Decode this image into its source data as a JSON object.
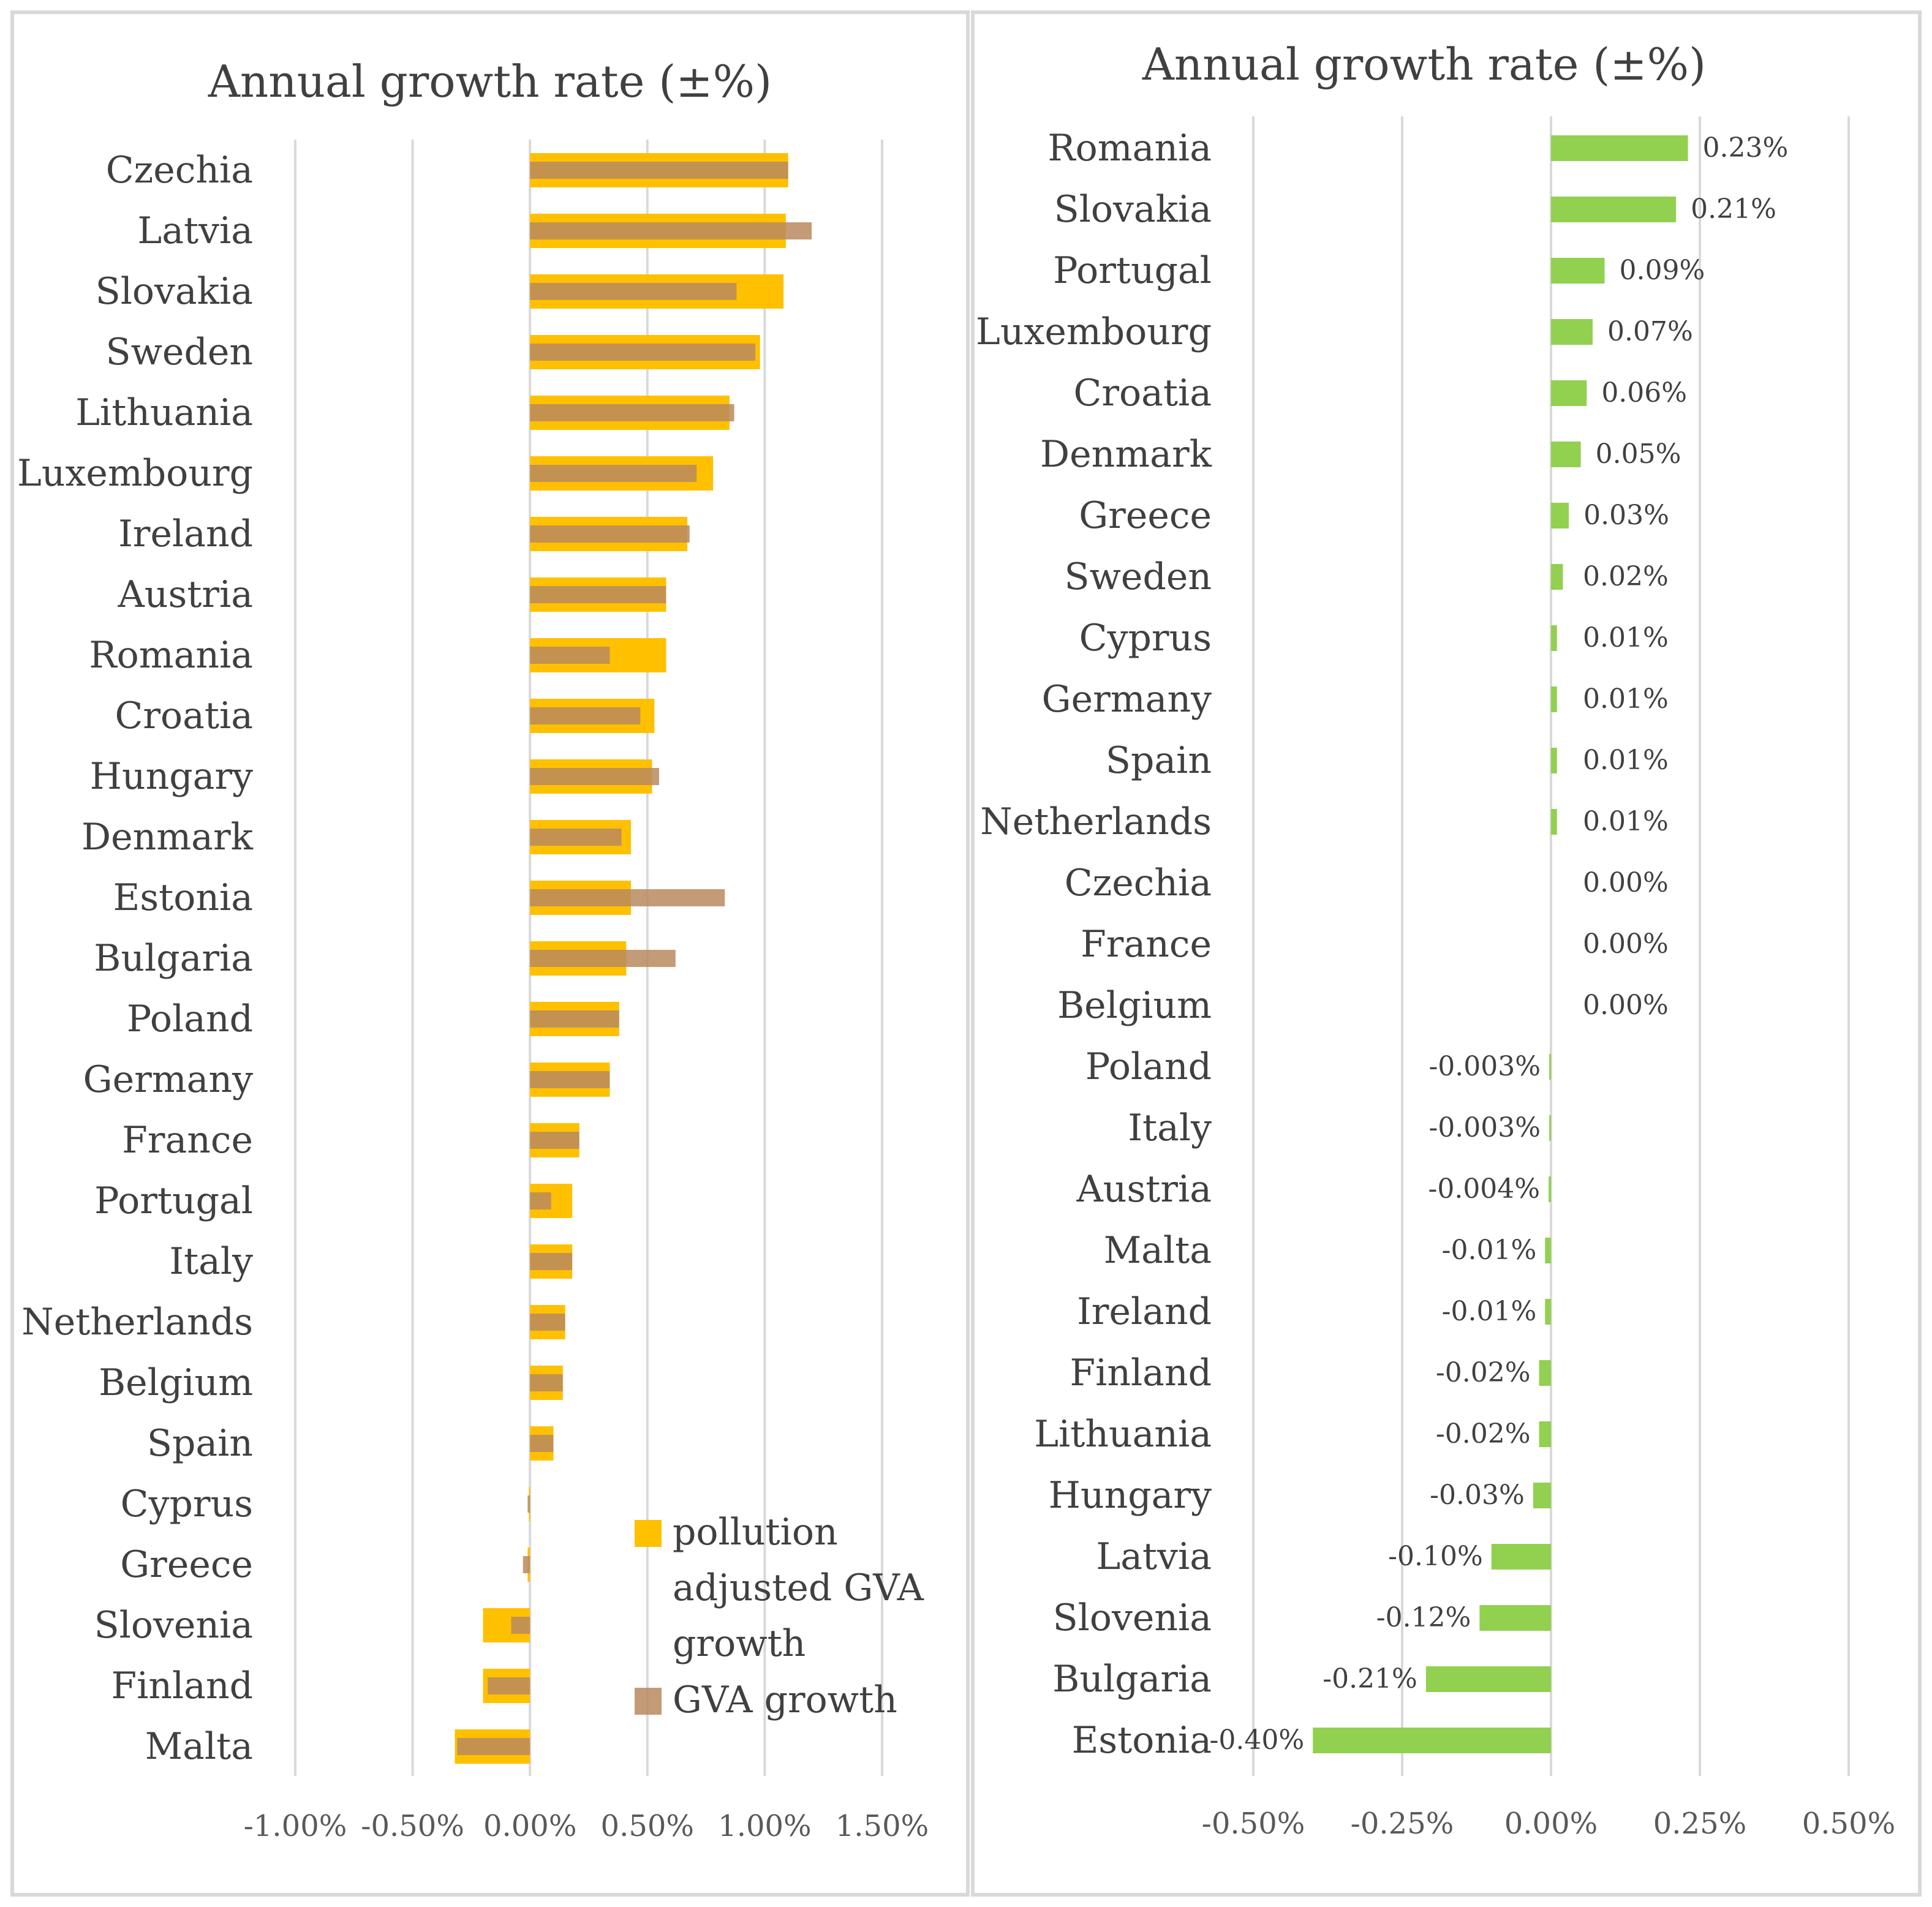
{
  "colors": {
    "pollution_adjusted": "#FFC000",
    "gva": "#B8895E",
    "difference": "#92D050",
    "grid": "#D9D9D9",
    "frame": "#D9D9D9"
  },
  "chart_data": [
    {
      "type": "bar",
      "orientation": "horizontal",
      "title": "Annual growth rate (±%)",
      "categories": [
        "Czechia",
        "Latvia",
        "Slovakia",
        "Sweden",
        "Lithuania",
        "Luxembourg",
        "Ireland",
        "Austria",
        "Romania",
        "Croatia",
        "Hungary",
        "Denmark",
        "Estonia",
        "Bulgaria",
        "Poland",
        "Germany",
        "France",
        "Portugal",
        "Italy",
        "Netherlands",
        "Belgium",
        "Spain",
        "Cyprus",
        "Greece",
        "Slovenia",
        "Finland",
        "Malta"
      ],
      "series": [
        {
          "name": "pollution adjusted GVA growth",
          "values": [
            1.1,
            1.09,
            1.08,
            0.98,
            0.85,
            0.78,
            0.67,
            0.58,
            0.58,
            0.53,
            0.52,
            0.43,
            0.43,
            0.41,
            0.38,
            0.34,
            0.21,
            0.18,
            0.18,
            0.15,
            0.14,
            0.1,
            -0.005,
            -0.01,
            -0.2,
            -0.2,
            -0.32
          ]
        },
        {
          "name": "GVA growth",
          "values": [
            1.1,
            1.2,
            0.88,
            0.96,
            0.87,
            0.71,
            0.68,
            0.58,
            0.34,
            0.47,
            0.55,
            0.39,
            0.83,
            0.62,
            0.38,
            0.34,
            0.21,
            0.09,
            0.18,
            0.15,
            0.14,
            0.1,
            -0.01,
            -0.03,
            -0.08,
            -0.18,
            -0.31
          ]
        }
      ],
      "xlim": [
        -1.0,
        1.5
      ],
      "x_ticks": [
        "-1.00%",
        "-0.50%",
        "0.00%",
        "0.50%",
        "1.00%",
        "1.50%"
      ],
      "x_tick_values": [
        -1.0,
        -0.5,
        0.0,
        0.5,
        1.0,
        1.5
      ],
      "grid": true,
      "legend_position": "bottom-right",
      "legend": [
        {
          "lines": [
            "pollution",
            "adjusted GVA",
            "growth"
          ]
        },
        {
          "lines": [
            "GVA growth"
          ]
        }
      ]
    },
    {
      "type": "bar",
      "orientation": "horizontal",
      "title": "Annual growth rate (±%)",
      "categories": [
        "Romania",
        "Slovakia",
        "Portugal",
        "Luxembourg",
        "Croatia",
        "Denmark",
        "Greece",
        "Sweden",
        "Cyprus",
        "Germany",
        "Spain",
        "Netherlands",
        "Czechia",
        "France",
        "Belgium",
        "Poland",
        "Italy",
        "Austria",
        "Malta",
        "Ireland",
        "Finland",
        "Lithuania",
        "Hungary",
        "Latvia",
        "Slovenia",
        "Bulgaria",
        "Estonia"
      ],
      "series": [
        {
          "values": [
            0.23,
            0.21,
            0.09,
            0.07,
            0.06,
            0.05,
            0.03,
            0.02,
            0.01,
            0.01,
            0.01,
            0.01,
            0.0,
            0.0,
            0.0,
            -0.003,
            -0.003,
            -0.004,
            -0.01,
            -0.01,
            -0.02,
            -0.02,
            -0.03,
            -0.1,
            -0.12,
            -0.21,
            -0.4
          ]
        }
      ],
      "data_labels": [
        "0.23%",
        "0.21%",
        "0.09%",
        "0.07%",
        "0.06%",
        "0.05%",
        "0.03%",
        "0.02%",
        "0.01%",
        "0.01%",
        "0.01%",
        "0.01%",
        "0.00%",
        "0.00%",
        "0.00%",
        "-0.003%",
        "-0.003%",
        "-0.004%",
        "-0.01%",
        "-0.01%",
        "-0.02%",
        "-0.02%",
        "-0.03%",
        "-0.10%",
        "-0.12%",
        "-0.21%",
        "-0.40%"
      ],
      "xlim": [
        -0.5,
        0.5
      ],
      "x_ticks": [
        "-0.50%",
        "-0.25%",
        "0.00%",
        "0.25%",
        "0.50%"
      ],
      "x_tick_values": [
        -0.5,
        -0.25,
        0.0,
        0.25,
        0.5
      ],
      "grid": true
    }
  ]
}
